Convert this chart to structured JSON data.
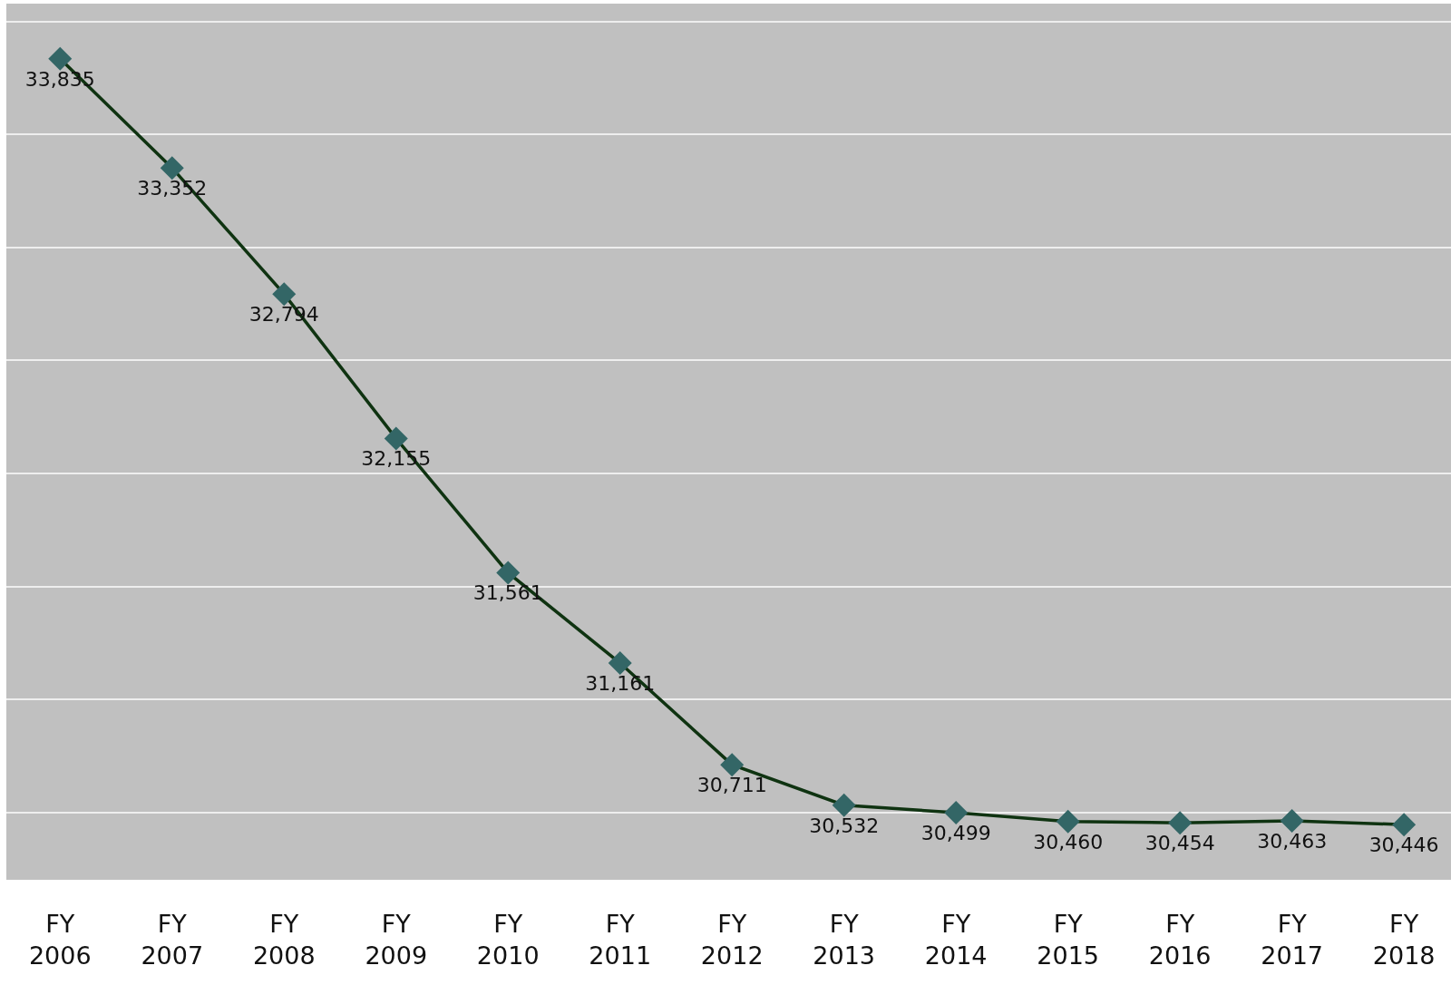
{
  "chart_data": {
    "type": "line",
    "categories": [
      "FY 2006",
      "FY 2007",
      "FY 2008",
      "FY 2009",
      "FY 2010",
      "FY 2011",
      "FY 2012",
      "FY 2013",
      "FY 2014",
      "FY 2015",
      "FY 2016",
      "FY 2017",
      "FY 2018"
    ],
    "series": [
      {
        "color": "#0f3311",
        "values": [
          33835,
          33352,
          32794,
          32155,
          31561,
          31161,
          30711,
          30532,
          30499,
          30460,
          30454,
          30463,
          30446
        ],
        "value_labels": [
          "33,835",
          "33,352",
          "32,794",
          "32,155",
          "31,561",
          "31,161",
          "30,711",
          "30,532",
          "30,499",
          "30,460",
          "30,454",
          "30,463",
          "30,446"
        ]
      }
    ],
    "tick_labels": "x",
    "grid": "y",
    "marker": "diamond",
    "line_style": "solid"
  }
}
